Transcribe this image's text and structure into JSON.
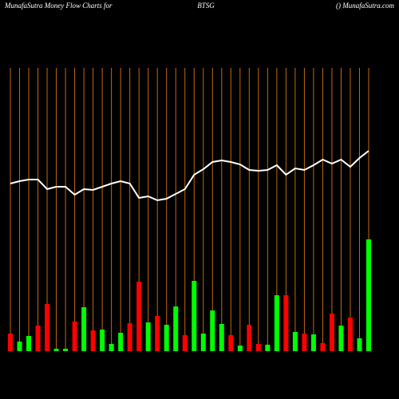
{
  "chart_data": {
    "type": "bar",
    "title": "MunafaSutra  Money Flow  Charts for",
    "symbol": "BTSG",
    "site": "() MunafaSutra.com",
    "ylim": [
      0,
      440
    ],
    "values": [
      22,
      12,
      19,
      32,
      59,
      3,
      3,
      37,
      55,
      26,
      27,
      9,
      23,
      35,
      87,
      36,
      44,
      33,
      56,
      20,
      88,
      22,
      51,
      34,
      20,
      7,
      33,
      9,
      8,
      70,
      70,
      24,
      22,
      21,
      10,
      47,
      32,
      42,
      16,
      140
    ],
    "colors": [
      "#ff0000",
      "#00ff00",
      "#00ff00",
      "#ff0000",
      "#ff0000",
      "#00ff00",
      "#00ff00",
      "#ff0000",
      "#00ff00",
      "#ff0000",
      "#00ff00",
      "#00ff00",
      "#00ff00",
      "#ff0000",
      "#ff0000",
      "#00ff00",
      "#ff0000",
      "#00ff00",
      "#00ff00",
      "#ff0000",
      "#00ff00",
      "#00ff00",
      "#00ff00",
      "#00ff00",
      "#ff0000",
      "#00ff00",
      "#ff0000",
      "#ff0000",
      "#00ff00",
      "#00ff00",
      "#ff0000",
      "#00ff00",
      "#ff0000",
      "#00ff00",
      "#ff0000",
      "#ff0000",
      "#00ff00",
      "#ff0000",
      "#00ff00",
      "#00ff00"
    ],
    "line_values": [
      210,
      213,
      215,
      215,
      203,
      206,
      206,
      196,
      203,
      202,
      206,
      210,
      213,
      210,
      192,
      194,
      189,
      191,
      197,
      203,
      221,
      228,
      237,
      239,
      237,
      234,
      227,
      226,
      227,
      233,
      221,
      229,
      227,
      233,
      240,
      235,
      240,
      231,
      242,
      251
    ],
    "line_color": "#ffffff"
  }
}
